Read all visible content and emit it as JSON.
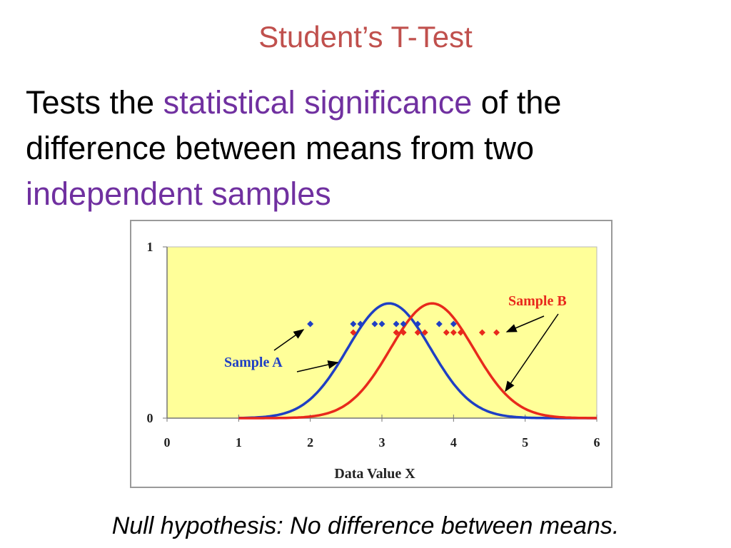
{
  "slide": {
    "title": "Student’s T-Test",
    "body": {
      "t1": "Tests the ",
      "h1": "statistical significance",
      "t2": " of the difference between means from two ",
      "h2": "independent samples"
    },
    "caption": "Null hypothesis: No difference between means."
  },
  "colors": {
    "title": "#c0504d",
    "highlight": "#7030a0",
    "plot_bg": "#ffff99",
    "sample_a": "#1f3fc4",
    "sample_b": "#e8291c"
  },
  "chart_data": {
    "type": "line",
    "xlabel": "Data Value X",
    "ylabel": "",
    "xlim": [
      0,
      6
    ],
    "ylim": [
      0,
      1
    ],
    "x_ticks": [
      "0",
      "1",
      "2",
      "3",
      "4",
      "5",
      "6"
    ],
    "y_ticks": [
      "0",
      "1"
    ],
    "grid": false,
    "series": [
      {
        "name": "Sample A",
        "curve": {
          "mean": 3.1,
          "sd": 0.58,
          "peak": 0.67,
          "range": [
            1.0,
            6.0
          ]
        },
        "points": {
          "y": 0.55,
          "x": [
            2.0,
            2.6,
            2.7,
            2.9,
            3.0,
            3.2,
            3.3,
            3.5,
            3.8,
            4.0
          ]
        }
      },
      {
        "name": "Sample B",
        "curve": {
          "mean": 3.7,
          "sd": 0.58,
          "peak": 0.67,
          "range": [
            1.0,
            6.0
          ]
        },
        "points": {
          "y": 0.5,
          "x": [
            2.6,
            3.2,
            3.3,
            3.5,
            3.6,
            3.9,
            4.0,
            4.1,
            4.4,
            4.6
          ]
        }
      }
    ],
    "annotations": [
      {
        "text": "Sample A",
        "series": 0
      },
      {
        "text": "Sample B",
        "series": 1
      }
    ]
  }
}
